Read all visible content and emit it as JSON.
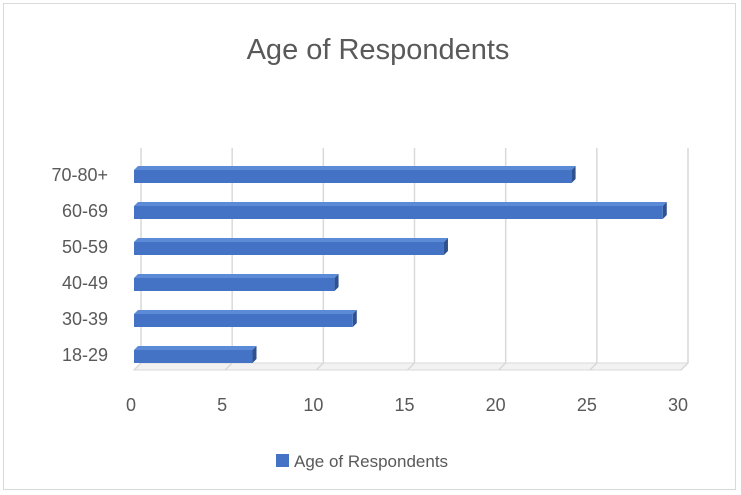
{
  "chart_data": {
    "type": "bar",
    "orientation": "horizontal",
    "title": "Age of Respondents",
    "categories": [
      "18-29",
      "30-39",
      "40-49",
      "50-59",
      "60-69",
      "70-80+"
    ],
    "series": [
      {
        "name": "Age of Respondents",
        "values": [
          6.5,
          12,
          11,
          17,
          29,
          24
        ],
        "color": "#4472c4"
      }
    ],
    "x_ticks": [
      "0",
      "5",
      "10",
      "15",
      "20",
      "25",
      "30"
    ],
    "xlim": [
      0,
      30
    ],
    "grid": true,
    "legend_position": "bottom",
    "style": "3d-clustered-bar"
  }
}
